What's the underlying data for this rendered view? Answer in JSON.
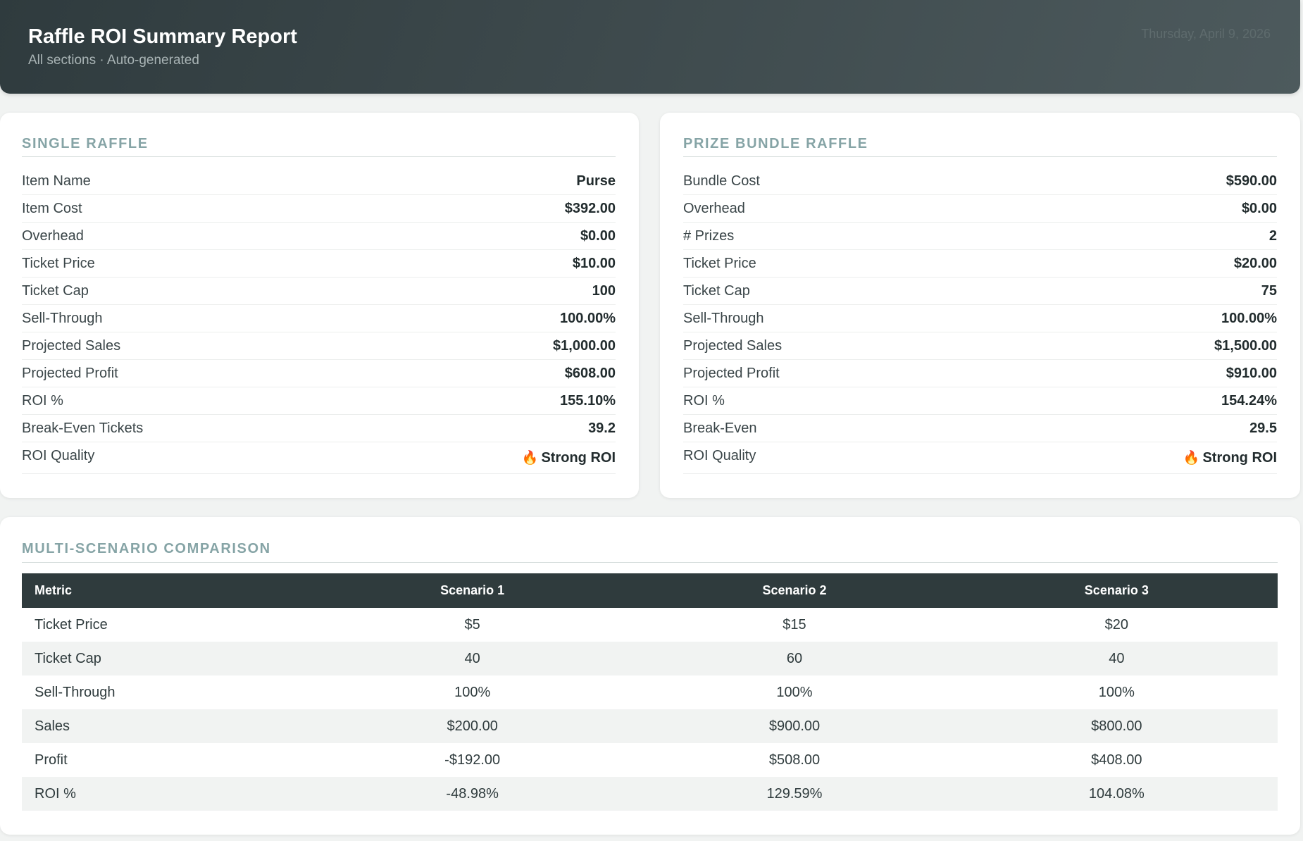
{
  "header": {
    "title": "Raffle ROI Summary Report",
    "subtitle": "All sections · Auto-generated",
    "date": "Thursday, April 9, 2026"
  },
  "single_raffle": {
    "title": "SINGLE RAFFLE",
    "rows": [
      {
        "label": "Item Name",
        "value": "Purse"
      },
      {
        "label": "Item Cost",
        "value": "$392.00"
      },
      {
        "label": "Overhead",
        "value": "$0.00"
      },
      {
        "label": "Ticket Price",
        "value": "$10.00"
      },
      {
        "label": "Ticket Cap",
        "value": "100"
      },
      {
        "label": "Sell-Through",
        "value": "100.00%"
      },
      {
        "label": "Projected Sales",
        "value": "$1,000.00"
      },
      {
        "label": "Projected Profit",
        "value": "$608.00"
      },
      {
        "label": "ROI %",
        "value": "155.10%"
      },
      {
        "label": "Break-Even Tickets",
        "value": "39.2"
      }
    ],
    "quality": {
      "label": "ROI Quality",
      "icon": "fire-icon",
      "value": "Strong ROI"
    }
  },
  "bundle_raffle": {
    "title": "PRIZE BUNDLE RAFFLE",
    "rows": [
      {
        "label": "Bundle Cost",
        "value": "$590.00"
      },
      {
        "label": "Overhead",
        "value": "$0.00"
      },
      {
        "label": "# Prizes",
        "value": "2"
      },
      {
        "label": "Ticket Price",
        "value": "$20.00"
      },
      {
        "label": "Ticket Cap",
        "value": "75"
      },
      {
        "label": "Sell-Through",
        "value": "100.00%"
      },
      {
        "label": "Projected Sales",
        "value": "$1,500.00"
      },
      {
        "label": "Projected Profit",
        "value": "$910.00"
      },
      {
        "label": "ROI %",
        "value": "154.24%"
      },
      {
        "label": "Break-Even",
        "value": "29.5"
      }
    ],
    "quality": {
      "label": "ROI Quality",
      "icon": "fire-icon",
      "value": "Strong ROI"
    }
  },
  "comparison": {
    "title": "MULTI-SCENARIO COMPARISON",
    "columns": [
      "Metric",
      "Scenario 1",
      "Scenario 2",
      "Scenario 3"
    ],
    "rows": [
      [
        "Ticket Price",
        "$5",
        "$15",
        "$20"
      ],
      [
        "Ticket Cap",
        "40",
        "60",
        "40"
      ],
      [
        "Sell-Through",
        "100%",
        "100%",
        "100%"
      ],
      [
        "Sales",
        "$200.00",
        "$900.00",
        "$800.00"
      ],
      [
        "Profit",
        "-$192.00",
        "$508.00",
        "$408.00"
      ],
      [
        "ROI %",
        "-48.98%",
        "129.59%",
        "104.08%"
      ]
    ]
  },
  "colors": {
    "header_bg": "#2f3b3e",
    "section_title": "#86a4a6",
    "table_header_bg": "#2f3b3d",
    "page_bg": "#f1f3f2"
  }
}
